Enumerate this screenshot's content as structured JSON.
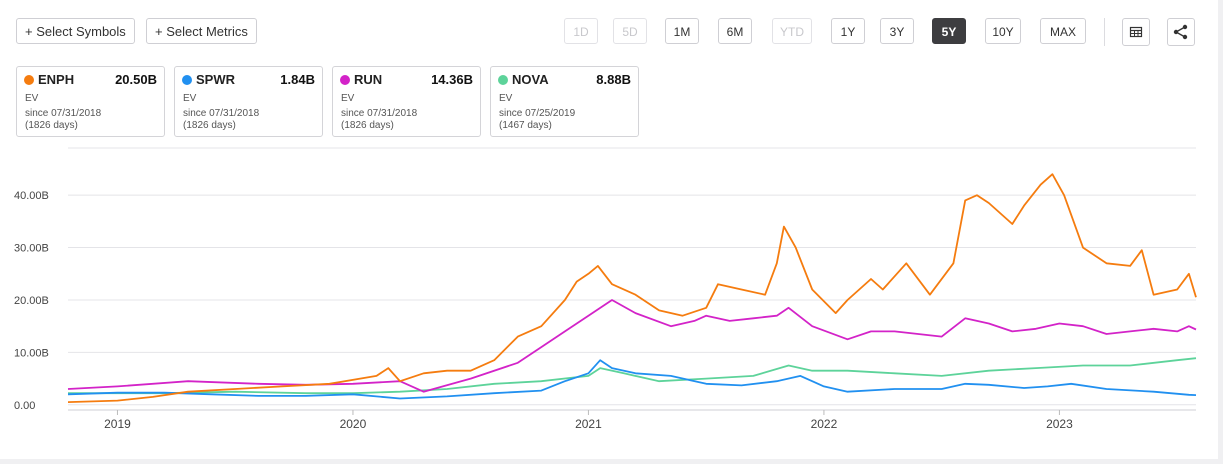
{
  "toolbar": {
    "select_symbols": "+ Select Symbols",
    "select_metrics": "+ Select Metrics",
    "ranges": [
      {
        "label": "1D",
        "state": "disabled"
      },
      {
        "label": "5D",
        "state": "disabled"
      },
      {
        "label": "1M",
        "state": "normal"
      },
      {
        "label": "6M",
        "state": "normal"
      },
      {
        "label": "YTD",
        "state": "disabled"
      },
      {
        "label": "1Y",
        "state": "normal"
      },
      {
        "label": "3Y",
        "state": "normal"
      },
      {
        "label": "5Y",
        "state": "active"
      },
      {
        "label": "10Y",
        "state": "normal"
      },
      {
        "label": "MAX",
        "state": "normal"
      }
    ],
    "icons": [
      "table-icon",
      "share-icon"
    ]
  },
  "cards": [
    {
      "ticker": "ENPH",
      "value": "20.50B",
      "metric": "EV",
      "since": "since 07/31/2018",
      "days": "(1826 days)",
      "color": "#f57c0f"
    },
    {
      "ticker": "SPWR",
      "value": "1.84B",
      "metric": "EV",
      "since": "since 07/31/2018",
      "days": "(1826 days)",
      "color": "#2190f0"
    },
    {
      "ticker": "RUN",
      "value": "14.36B",
      "metric": "EV",
      "since": "since 07/31/2018",
      "days": "(1826 days)",
      "color": "#d323c8"
    },
    {
      "ticker": "NOVA",
      "value": "8.88B",
      "metric": "EV",
      "since": "since 07/25/2019",
      "days": "(1467 days)",
      "color": "#5dd39a"
    }
  ],
  "chart_data": {
    "type": "line",
    "y_tick_labels": [
      "0.00",
      "10.00B",
      "20.00B",
      "30.00B",
      "40.00B"
    ],
    "y_ticks": [
      0,
      10,
      20,
      30,
      40
    ],
    "ylim": [
      -1,
      49
    ],
    "x_tick_labels": [
      "2019",
      "2020",
      "2021",
      "2022",
      "2023"
    ],
    "x_ticks": [
      2019.0,
      2020.0,
      2021.0,
      2022.0,
      2023.0
    ],
    "xlim": [
      2018.79,
      2023.58
    ],
    "grid": true,
    "series": [
      {
        "name": "ENPH",
        "color": "#f57c0f",
        "x": [
          2018.79,
          2019.0,
          2019.15,
          2019.3,
          2019.5,
          2019.7,
          2019.9,
          2020.1,
          2020.15,
          2020.2,
          2020.3,
          2020.4,
          2020.5,
          2020.6,
          2020.7,
          2020.8,
          2020.9,
          2020.95,
          2021.0,
          2021.04,
          2021.1,
          2021.2,
          2021.3,
          2021.4,
          2021.5,
          2021.55,
          2021.65,
          2021.75,
          2021.8,
          2021.83,
          2021.88,
          2021.95,
          2022.05,
          2022.1,
          2022.2,
          2022.25,
          2022.35,
          2022.45,
          2022.55,
          2022.6,
          2022.65,
          2022.7,
          2022.8,
          2022.85,
          2022.92,
          2022.97,
          2023.02,
          2023.1,
          2023.2,
          2023.3,
          2023.35,
          2023.4,
          2023.5,
          2023.55,
          2023.58
        ],
        "y": [
          0.5,
          0.8,
          1.5,
          2.5,
          3.0,
          3.5,
          4.0,
          5.5,
          7.0,
          4.5,
          6.0,
          6.5,
          6.5,
          8.5,
          13.0,
          15.0,
          20.0,
          23.5,
          25.0,
          26.5,
          23.0,
          21.0,
          18.0,
          17.0,
          18.5,
          23.0,
          22.0,
          21.0,
          27.0,
          34.0,
          30.0,
          22.0,
          17.5,
          20.0,
          24.0,
          22.0,
          27.0,
          21.0,
          27.0,
          39.0,
          40.0,
          38.5,
          34.5,
          38.0,
          42.0,
          44.0,
          40.0,
          30.0,
          27.0,
          26.5,
          29.5,
          21.0,
          22.0,
          25.0,
          20.5
        ]
      },
      {
        "name": "SPWR",
        "color": "#2190f0",
        "x": [
          2018.79,
          2019.0,
          2019.2,
          2019.4,
          2019.6,
          2019.8,
          2020.0,
          2020.2,
          2020.4,
          2020.6,
          2020.8,
          2020.9,
          2021.0,
          2021.05,
          2021.1,
          2021.2,
          2021.35,
          2021.5,
          2021.65,
          2021.8,
          2021.9,
          2022.0,
          2022.1,
          2022.3,
          2022.5,
          2022.6,
          2022.7,
          2022.85,
          2022.95,
          2023.05,
          2023.2,
          2023.4,
          2023.55,
          2023.58
        ],
        "y": [
          2.0,
          2.3,
          2.3,
          2.0,
          1.7,
          1.7,
          2.0,
          1.2,
          1.6,
          2.2,
          2.7,
          4.5,
          6.0,
          8.5,
          7.0,
          6.0,
          5.5,
          4.0,
          3.7,
          4.5,
          5.5,
          3.5,
          2.5,
          3.0,
          3.0,
          4.0,
          3.8,
          3.2,
          3.5,
          4.0,
          3.0,
          2.5,
          1.9,
          1.84
        ]
      },
      {
        "name": "RUN",
        "color": "#d323c8",
        "x": [
          2018.79,
          2019.0,
          2019.3,
          2019.6,
          2019.8,
          2020.0,
          2020.2,
          2020.3,
          2020.5,
          2020.7,
          2020.8,
          2020.9,
          2021.0,
          2021.1,
          2021.2,
          2021.35,
          2021.45,
          2021.5,
          2021.6,
          2021.7,
          2021.8,
          2021.85,
          2021.95,
          2022.1,
          2022.2,
          2022.3,
          2022.5,
          2022.6,
          2022.7,
          2022.8,
          2022.9,
          2023.0,
          2023.1,
          2023.2,
          2023.3,
          2023.4,
          2023.5,
          2023.55,
          2023.58
        ],
        "y": [
          3.0,
          3.5,
          4.5,
          4.0,
          3.8,
          4.0,
          4.5,
          2.5,
          5.0,
          8.0,
          11.0,
          14.0,
          17.0,
          20.0,
          17.5,
          15.0,
          16.0,
          17.0,
          16.0,
          16.5,
          17.0,
          18.5,
          15.0,
          12.5,
          14.0,
          14.0,
          13.0,
          16.5,
          15.5,
          14.0,
          14.5,
          15.5,
          15.0,
          13.5,
          14.0,
          14.5,
          14.0,
          15.0,
          14.36
        ]
      },
      {
        "name": "NOVA",
        "color": "#5dd39a",
        "x": [
          2018.79,
          2019.2,
          2019.5,
          2019.8,
          2020.0,
          2020.2,
          2020.4,
          2020.6,
          2020.8,
          2021.0,
          2021.05,
          2021.15,
          2021.3,
          2021.5,
          2021.7,
          2021.85,
          2021.95,
          2022.1,
          2022.3,
          2022.5,
          2022.7,
          2022.9,
          2023.1,
          2023.3,
          2023.5,
          2023.58
        ],
        "y": [
          2.2,
          2.2,
          2.5,
          2.2,
          2.2,
          2.5,
          3.0,
          4.0,
          4.5,
          5.5,
          7.0,
          6.0,
          4.5,
          5.0,
          5.5,
          7.5,
          6.5,
          6.5,
          6.0,
          5.5,
          6.5,
          7.0,
          7.5,
          7.5,
          8.5,
          8.88
        ]
      }
    ]
  }
}
